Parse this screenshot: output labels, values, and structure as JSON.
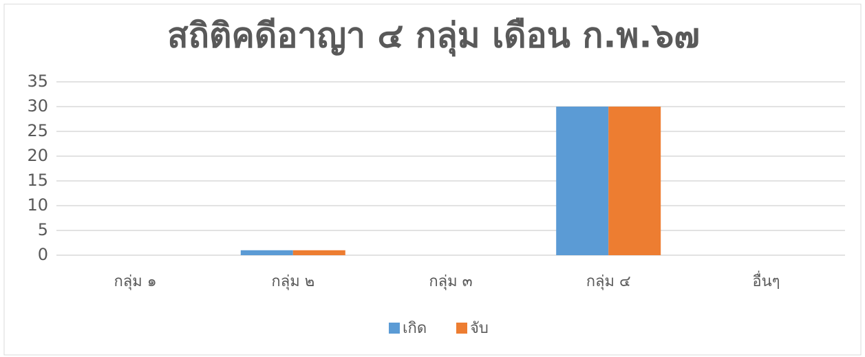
{
  "chart_data": {
    "type": "bar",
    "title": "สถิติคดีอาญา ๔ กลุ่ม เดือน ก.พ.๖๗",
    "categories": [
      "กลุ่ม ๑",
      "กลุ่ม ๒",
      "กลุ่ม ๓",
      "กลุ่ม ๔",
      "อื่นๆ"
    ],
    "series": [
      {
        "name": "เกิด",
        "color": "#5b9bd5",
        "values": [
          0,
          1,
          0,
          30,
          0
        ]
      },
      {
        "name": "จับ",
        "color": "#ed7d31",
        "values": [
          0,
          1,
          0,
          30,
          0
        ]
      }
    ],
    "ylim": [
      0,
      35
    ],
    "yticks": [
      0,
      5,
      10,
      15,
      20,
      25,
      30,
      35
    ],
    "grid": true,
    "legend": "bottom"
  }
}
